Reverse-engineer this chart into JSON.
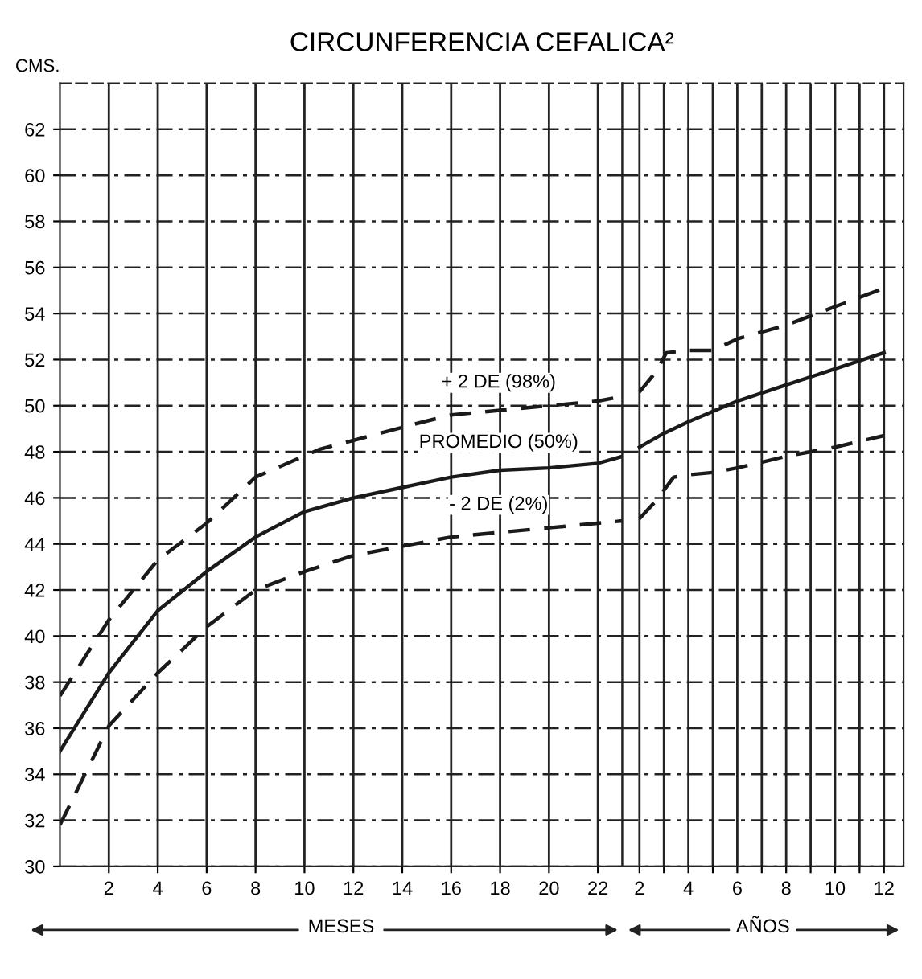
{
  "chart_data": [
    {
      "type": "line",
      "title": "CIRCUNFERENCIA CEFALICA²",
      "ylabel": "CMS.",
      "xlabel": "MESES",
      "xlim": [
        0,
        23
      ],
      "ylim": [
        30,
        64
      ],
      "xticks": [
        2,
        4,
        6,
        8,
        10,
        12,
        14,
        16,
        18,
        20,
        22
      ],
      "yticks": [
        30,
        32,
        34,
        36,
        38,
        40,
        42,
        44,
        46,
        48,
        50,
        52,
        54,
        56,
        58,
        60,
        62
      ],
      "grid": true,
      "series": [
        {
          "name": "+ 2 DE (98%)",
          "color": "#1a1a1a",
          "line_style": "dashed",
          "x": [
            0,
            2,
            4,
            6,
            8,
            10.6,
            14.5,
            16,
            18,
            20,
            22,
            23
          ],
          "values": [
            37.4,
            40.7,
            43.3,
            44.9,
            46.9,
            48.1,
            49.2,
            49.6,
            49.8,
            50.0,
            50.2,
            50.4
          ]
        },
        {
          "name": "PROMEDIO (50%)",
          "color": "#1a1a1a",
          "line_style": "solid",
          "x": [
            0,
            2,
            4,
            6,
            8,
            10,
            12,
            16,
            18,
            20,
            22,
            23
          ],
          "values": [
            35.0,
            38.4,
            41.1,
            42.8,
            44.3,
            45.4,
            46.0,
            46.9,
            47.2,
            47.3,
            47.5,
            47.8
          ]
        },
        {
          "name": "- 2 DE (2%)",
          "color": "#1a1a1a",
          "line_style": "dashed",
          "x": [
            0,
            2,
            4,
            6,
            8,
            10,
            12,
            16,
            18,
            20,
            22,
            23
          ],
          "values": [
            31.8,
            36.1,
            38.4,
            40.4,
            42.0,
            42.8,
            43.5,
            44.3,
            44.5,
            44.7,
            44.9,
            45.0
          ]
        }
      ]
    },
    {
      "type": "line",
      "xlabel": "AÑOS",
      "tick_labels": "x",
      "xlim": [
        1.3,
        12.8
      ],
      "ylim": [
        30,
        64
      ],
      "xticks": [
        2,
        {
          "value": 3,
          "label": null
        },
        4,
        {
          "value": 5,
          "label": null
        },
        6,
        {
          "value": 7,
          "label": null
        },
        8,
        {
          "value": 9,
          "label": null
        },
        10,
        {
          "value": 11,
          "label": null
        },
        12
      ],
      "yticks": [
        30,
        32,
        34,
        36,
        38,
        40,
        42,
        44,
        46,
        48,
        50,
        52,
        54,
        56,
        58,
        60,
        62
      ],
      "grid": true,
      "series": [
        {
          "color": "#1a1a1a",
          "line_style": "dashed",
          "x": [
            2,
            2.7,
            3.1,
            4,
            5,
            6,
            8,
            10,
            12
          ],
          "values": [
            50.6,
            51.5,
            52.3,
            52.4,
            52.4,
            52.9,
            53.5,
            54.3,
            55.1
          ]
        },
        {
          "color": "#1a1a1a",
          "line_style": "solid",
          "x": [
            2,
            3,
            4,
            6,
            8,
            10,
            12
          ],
          "values": [
            48.2,
            48.8,
            49.3,
            50.2,
            50.9,
            51.6,
            52.3
          ]
        },
        {
          "color": "#1a1a1a",
          "line_style": "dashed",
          "x": [
            2,
            2.7,
            3.4,
            4,
            5,
            6,
            8,
            10,
            12
          ],
          "values": [
            45.1,
            45.9,
            46.9,
            47.0,
            47.1,
            47.3,
            47.8,
            48.2,
            48.7
          ]
        }
      ]
    }
  ]
}
